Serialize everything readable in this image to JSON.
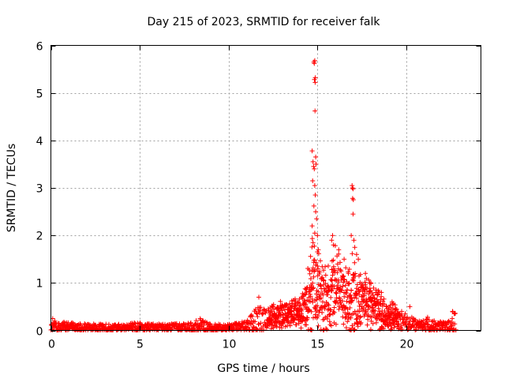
{
  "chart_data": {
    "type": "scatter",
    "title": "Day 215 of 2023, SRMTID for receiver falk",
    "xlabel": "GPS time / hours",
    "ylabel": "SRMTID / TECUs",
    "xlim": [
      0,
      24.2
    ],
    "ylim": [
      0,
      6
    ],
    "xticks": [
      0,
      5,
      10,
      15,
      20
    ],
    "yticks": [
      0,
      1,
      2,
      3,
      4,
      5,
      6
    ],
    "grid": true,
    "marker": "+",
    "color": "#ff0000",
    "series": [
      {
        "name": "SRMTID",
        "envelope": {
          "x": [
            0.0,
            0.5,
            1.0,
            2.0,
            3.0,
            4.0,
            4.8,
            5.5,
            6.5,
            7.5,
            8.4,
            9.0,
            10.0,
            11.0,
            11.6,
            12.0,
            12.5,
            13.0,
            13.5,
            14.0,
            14.3,
            14.5,
            14.7,
            14.85,
            15.0,
            15.2,
            15.5,
            15.8,
            16.0,
            16.3,
            16.6,
            16.9,
            17.0,
            17.2,
            17.5,
            17.8,
            18.2,
            18.6,
            19.0,
            19.4,
            19.8,
            20.2,
            20.6,
            21.0,
            21.2,
            21.6,
            22.0,
            22.4,
            22.6,
            22.8
          ],
          "base": [
            0.12,
            0.08,
            0.08,
            0.06,
            0.06,
            0.06,
            0.07,
            0.06,
            0.06,
            0.07,
            0.08,
            0.06,
            0.06,
            0.1,
            0.15,
            0.22,
            0.3,
            0.35,
            0.4,
            0.4,
            0.5,
            0.7,
            0.8,
            0.9,
            0.8,
            0.7,
            0.6,
            0.8,
            0.9,
            0.8,
            0.7,
            0.7,
            0.7,
            0.6,
            0.6,
            0.6,
            0.5,
            0.4,
            0.3,
            0.3,
            0.2,
            0.15,
            0.12,
            0.1,
            0.1,
            0.08,
            0.08,
            0.08,
            0.1,
            0.1
          ],
          "spread": [
            0.12,
            0.1,
            0.1,
            0.08,
            0.08,
            0.07,
            0.1,
            0.08,
            0.08,
            0.08,
            0.15,
            0.08,
            0.08,
            0.1,
            0.35,
            0.25,
            0.25,
            0.3,
            0.3,
            0.35,
            0.5,
            0.8,
            1.2,
            1.0,
            1.0,
            0.8,
            0.7,
            0.8,
            0.9,
            0.8,
            0.7,
            1.0,
            1.0,
            0.8,
            0.5,
            0.5,
            0.4,
            0.4,
            0.3,
            0.25,
            0.2,
            0.15,
            0.12,
            0.12,
            0.15,
            0.12,
            0.1,
            0.15,
            0.3,
            0.25
          ]
        },
        "outliers": [
          [
            14.8,
            5.65
          ],
          [
            14.82,
            5.62
          ],
          [
            14.85,
            5.68
          ],
          [
            14.83,
            5.28
          ],
          [
            14.88,
            5.32
          ],
          [
            14.87,
            5.22
          ],
          [
            14.86,
            4.62
          ],
          [
            14.7,
            3.78
          ],
          [
            14.75,
            3.55
          ],
          [
            14.78,
            3.45
          ],
          [
            14.82,
            3.4
          ],
          [
            14.9,
            3.65
          ],
          [
            14.92,
            3.5
          ],
          [
            14.73,
            3.15
          ],
          [
            14.85,
            3.05
          ],
          [
            14.88,
            2.85
          ],
          [
            14.8,
            2.62
          ],
          [
            14.9,
            2.5
          ],
          [
            14.95,
            2.35
          ],
          [
            14.7,
            2.2
          ],
          [
            14.85,
            2.05
          ],
          [
            15.0,
            2.0
          ],
          [
            14.75,
            1.85
          ],
          [
            15.05,
            1.7
          ],
          [
            16.95,
            3.05
          ],
          [
            16.97,
            3.0
          ],
          [
            17.0,
            2.98
          ],
          [
            16.98,
            2.78
          ],
          [
            17.02,
            2.75
          ],
          [
            17.0,
            2.45
          ],
          [
            16.9,
            2.0
          ],
          [
            17.05,
            1.9
          ],
          [
            17.1,
            1.75
          ],
          [
            15.85,
            2.0
          ],
          [
            15.8,
            1.9
          ],
          [
            15.9,
            1.8
          ],
          [
            16.2,
            1.7
          ],
          [
            16.5,
            1.5
          ],
          [
            17.2,
            1.6
          ],
          [
            17.3,
            1.5
          ],
          [
            17.7,
            1.2
          ],
          [
            18.0,
            1.0
          ],
          [
            18.6,
            0.8
          ],
          [
            19.2,
            0.6
          ],
          [
            20.2,
            0.5
          ],
          [
            21.2,
            0.28
          ],
          [
            22.6,
            0.4
          ],
          [
            22.7,
            0.35
          ],
          [
            11.7,
            0.7
          ],
          [
            8.4,
            0.25
          ],
          [
            0.1,
            0.25
          ],
          [
            14.6,
            0.02
          ],
          [
            15.2,
            0.02
          ],
          [
            16.8,
            0.02
          ],
          [
            17.1,
            0.02
          ],
          [
            18.0,
            0.02
          ],
          [
            18.5,
            0.02
          ]
        ]
      }
    ]
  }
}
